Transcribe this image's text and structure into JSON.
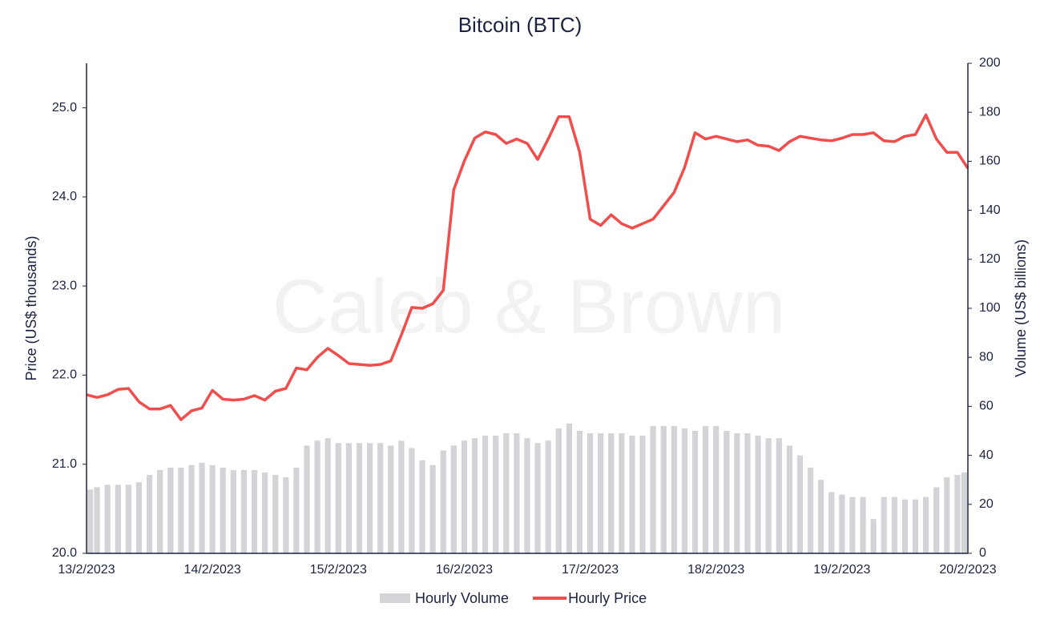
{
  "chart_data": {
    "type": "bar-line",
    "title": "Bitcoin (BTC)",
    "watermark": "Caleb & Brown",
    "y_label": "Price (US$ thousands)",
    "y2_label": "Volume (US$ billions)",
    "categories": [
      "13/2/2023",
      null,
      null,
      null,
      null,
      null,
      null,
      null,
      null,
      null,
      null,
      null,
      "14/2/2023",
      null,
      null,
      null,
      null,
      null,
      null,
      null,
      null,
      null,
      null,
      null,
      "15/2/2023",
      null,
      null,
      null,
      null,
      null,
      null,
      null,
      null,
      null,
      null,
      null,
      "16/2/2023",
      null,
      null,
      null,
      null,
      null,
      null,
      null,
      null,
      null,
      null,
      null,
      "17/2/2023",
      null,
      null,
      null,
      null,
      null,
      null,
      null,
      null,
      null,
      null,
      null,
      "18/2/2023",
      null,
      null,
      null,
      null,
      null,
      null,
      null,
      null,
      null,
      null,
      null,
      "19/2/2023",
      null,
      null,
      null,
      null,
      null,
      null,
      null,
      null,
      null,
      null,
      null,
      "20/2/2023"
    ],
    "series": [
      {
        "name": "Hourly Volume",
        "type": "bar",
        "axis": "y2",
        "color": "#d3d4d8",
        "values": [
          26,
          27,
          28,
          28,
          28,
          29,
          32,
          34,
          35,
          35,
          36,
          37,
          36,
          35,
          34,
          34,
          34,
          33,
          32,
          31,
          35,
          44,
          46,
          47,
          45,
          45,
          45,
          45,
          45,
          44,
          46,
          43,
          38,
          36,
          42,
          44,
          46,
          47,
          48,
          48,
          49,
          49,
          47,
          45,
          46,
          51,
          53,
          50,
          49,
          49,
          49,
          49,
          48,
          48,
          52,
          52,
          52,
          51,
          50,
          52,
          52,
          50,
          49,
          49,
          48,
          47,
          47,
          44,
          40,
          35,
          30,
          25,
          24,
          23,
          23,
          14,
          23,
          23,
          22,
          22,
          23,
          27,
          31,
          32,
          33
        ]
      },
      {
        "name": "Hourly Price",
        "type": "line",
        "axis": "y",
        "color": "#f04d4d",
        "values": [
          21.78,
          21.75,
          21.78,
          21.84,
          21.85,
          21.7,
          21.62,
          21.62,
          21.66,
          21.5,
          21.6,
          21.63,
          21.83,
          21.73,
          21.72,
          21.73,
          21.77,
          21.72,
          21.82,
          21.85,
          22.08,
          22.06,
          22.2,
          22.3,
          22.22,
          22.13,
          22.12,
          22.11,
          22.12,
          22.16,
          22.45,
          22.76,
          22.75,
          22.8,
          22.95,
          24.08,
          24.4,
          24.66,
          24.73,
          24.7,
          24.6,
          24.65,
          24.6,
          24.42,
          24.65,
          24.9,
          24.9,
          24.5,
          23.75,
          23.68,
          23.8,
          23.7,
          23.65,
          23.7,
          23.75,
          23.9,
          24.05,
          24.33,
          24.72,
          24.65,
          24.68,
          24.65,
          24.62,
          24.64,
          24.58,
          24.57,
          24.52,
          24.62,
          24.68,
          24.66,
          24.64,
          24.63,
          24.66,
          24.7,
          24.7,
          24.72,
          24.63,
          24.62,
          24.68,
          24.7,
          24.92,
          24.65,
          24.5,
          24.5,
          24.32
        ]
      }
    ],
    "ylim": [
      20,
      25.5
    ],
    "yticks": [
      {
        "value": 20,
        "label": "20.0"
      },
      {
        "value": 21,
        "label": "21.0"
      },
      {
        "value": 22,
        "label": "22.0"
      },
      {
        "value": 23,
        "label": "23.0"
      },
      {
        "value": 24,
        "label": "24.0"
      },
      {
        "value": 25,
        "label": "25.0"
      }
    ],
    "y2lim": [
      0,
      200
    ],
    "y2ticks": [
      0,
      20,
      40,
      60,
      80,
      100,
      120,
      140,
      160,
      180,
      200
    ],
    "legend": "bottom"
  }
}
